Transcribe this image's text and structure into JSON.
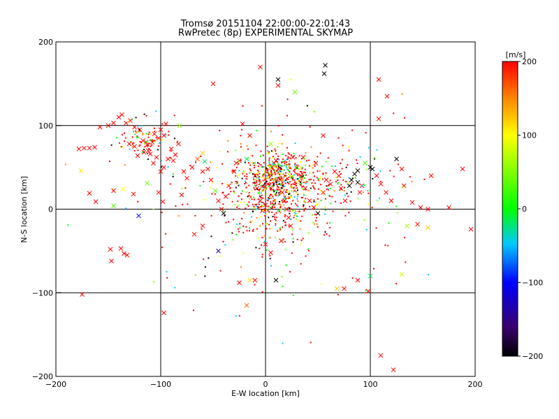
{
  "chart_data": {
    "type": "scatter",
    "title": "Tromsø 20151104 22:00:00-22:01:43",
    "subtitle": "RwPretec (8p) EXPERIMENTAL SKYMAP",
    "xlabel": "E-W location [km]",
    "ylabel": "N-S location [km]",
    "xlim": [
      -200,
      200
    ],
    "ylim": [
      -200,
      200
    ],
    "x_ticks": [
      -200,
      -100,
      0,
      100,
      200
    ],
    "y_ticks": [
      -200,
      -100,
      0,
      100,
      200
    ],
    "grid": true,
    "colorbar": {
      "label": "[m/s]",
      "range": [
        -200,
        200
      ],
      "ticks": [
        -200,
        -100,
        0,
        100,
        200
      ],
      "colors": [
        "#000000",
        "#3a0070",
        "#0000ff",
        "#00c8ff",
        "#00ff00",
        "#ffff00",
        "#ff8000",
        "#ff0000"
      ]
    },
    "series_large_crosses": [
      {
        "x": -178,
        "y": 72,
        "v": 200
      },
      {
        "x": -173,
        "y": 73,
        "v": 200
      },
      {
        "x": -168,
        "y": 73,
        "v": 200
      },
      {
        "x": -163,
        "y": 74,
        "v": 200
      },
      {
        "x": -158,
        "y": 98,
        "v": 200
      },
      {
        "x": -150,
        "y": 100,
        "v": 200
      },
      {
        "x": -145,
        "y": 103,
        "v": 200
      },
      {
        "x": -140,
        "y": 110,
        "v": 200
      },
      {
        "x": -137,
        "y": 113,
        "v": 200
      },
      {
        "x": -133,
        "y": 103,
        "v": 200
      },
      {
        "x": -129,
        "y": 106,
        "v": 200
      },
      {
        "x": -125,
        "y": 98,
        "v": 200
      },
      {
        "x": -120,
        "y": 95,
        "v": 200
      },
      {
        "x": -117,
        "y": 82,
        "v": 200
      },
      {
        "x": -114,
        "y": 80,
        "v": 200
      },
      {
        "x": -112,
        "y": 70,
        "v": 200
      },
      {
        "x": -110,
        "y": 66,
        "v": 200
      },
      {
        "x": -106,
        "y": 90,
        "v": 200
      },
      {
        "x": -102,
        "y": 85,
        "v": 200
      },
      {
        "x": -100,
        "y": 95,
        "v": 200
      },
      {
        "x": -97,
        "y": 88,
        "v": 200
      },
      {
        "x": -95,
        "y": 102,
        "v": 200
      },
      {
        "x": -93,
        "y": 60,
        "v": 200
      },
      {
        "x": -90,
        "y": 72,
        "v": 200
      },
      {
        "x": -86,
        "y": 65,
        "v": 200
      },
      {
        "x": -83,
        "y": 78,
        "v": 200
      },
      {
        "x": -130,
        "y": 78,
        "v": 200
      },
      {
        "x": -125,
        "y": 75,
        "v": 200
      },
      {
        "x": -122,
        "y": 64,
        "v": 200
      },
      {
        "x": -116,
        "y": 68,
        "v": 200
      },
      {
        "x": -113,
        "y": 77,
        "v": 200
      },
      {
        "x": -108,
        "y": 80,
        "v": 200
      },
      {
        "x": -104,
        "y": 62,
        "v": 200
      },
      {
        "x": -100,
        "y": 45,
        "v": 200
      },
      {
        "x": -97,
        "y": 50,
        "v": 200
      },
      {
        "x": -107,
        "y": 55,
        "v": 200
      },
      {
        "x": -176,
        "y": 46,
        "v": 110
      },
      {
        "x": -168,
        "y": 19,
        "v": 200
      },
      {
        "x": -162,
        "y": 9,
        "v": 200
      },
      {
        "x": -145,
        "y": 22,
        "v": 200
      },
      {
        "x": -136,
        "y": 24,
        "v": 100
      },
      {
        "x": -126,
        "y": 18,
        "v": 200
      },
      {
        "x": -145,
        "y": 4,
        "v": 30
      },
      {
        "x": -121,
        "y": -8,
        "v": -100
      },
      {
        "x": -148,
        "y": -48,
        "v": 200
      },
      {
        "x": -147,
        "y": -62,
        "v": 200
      },
      {
        "x": -138,
        "y": -47,
        "v": 200
      },
      {
        "x": -135,
        "y": -53,
        "v": 200
      },
      {
        "x": -132,
        "y": -55,
        "v": 200
      },
      {
        "x": -175,
        "y": -102,
        "v": 200
      },
      {
        "x": -97,
        "y": -124,
        "v": 200
      },
      {
        "x": -113,
        "y": 31,
        "v": 40
      },
      {
        "x": -102,
        "y": 20,
        "v": 200
      },
      {
        "x": -98,
        "y": 9,
        "v": 200
      },
      {
        "x": -80,
        "y": 17,
        "v": 200
      },
      {
        "x": -75,
        "y": 37,
        "v": 200
      },
      {
        "x": -70,
        "y": 50,
        "v": 200
      },
      {
        "x": -65,
        "y": 60,
        "v": 160
      },
      {
        "x": -60,
        "y": 67,
        "v": 120
      },
      {
        "x": -58,
        "y": 57,
        "v": -20
      },
      {
        "x": -55,
        "y": 48,
        "v": 200
      },
      {
        "x": -52,
        "y": 35,
        "v": 200
      },
      {
        "x": -48,
        "y": 22,
        "v": 40
      },
      {
        "x": -45,
        "y": 10,
        "v": 200
      },
      {
        "x": -42,
        "y": 0,
        "v": 200
      },
      {
        "x": -40,
        "y": -5,
        "v": -200
      },
      {
        "x": -38,
        "y": 15,
        "v": 200
      },
      {
        "x": -35,
        "y": 28,
        "v": 200
      },
      {
        "x": -30,
        "y": 45,
        "v": 200
      },
      {
        "x": -25,
        "y": 58,
        "v": 200
      },
      {
        "x": -22,
        "y": 102,
        "v": 200
      },
      {
        "x": -15,
        "y": 88,
        "v": 200
      },
      {
        "x": -10,
        "y": 40,
        "v": 200
      },
      {
        "x": -8,
        "y": 25,
        "v": 200
      },
      {
        "x": -5,
        "y": 10,
        "v": 200
      },
      {
        "x": -3,
        "y": -2,
        "v": 200
      },
      {
        "x": 0,
        "y": 5,
        "v": 200
      },
      {
        "x": 2,
        "y": 30,
        "v": 200
      },
      {
        "x": 4,
        "y": 42,
        "v": 200
      },
      {
        "x": 6,
        "y": 50,
        "v": 200
      },
      {
        "x": 8,
        "y": 55,
        "v": 200
      },
      {
        "x": 10,
        "y": 58,
        "v": 200
      },
      {
        "x": 12,
        "y": 48,
        "v": 200
      },
      {
        "x": 14,
        "y": 35,
        "v": 200
      },
      {
        "x": 16,
        "y": 20,
        "v": 200
      },
      {
        "x": 18,
        "y": 10,
        "v": 200
      },
      {
        "x": 20,
        "y": 0,
        "v": 200
      },
      {
        "x": 22,
        "y": -10,
        "v": 200
      },
      {
        "x": 24,
        "y": -20,
        "v": 200
      },
      {
        "x": 26,
        "y": 62,
        "v": 200
      },
      {
        "x": 30,
        "y": 50,
        "v": 200
      },
      {
        "x": 34,
        "y": 40,
        "v": 200
      },
      {
        "x": 38,
        "y": 25,
        "v": 200
      },
      {
        "x": 42,
        "y": 10,
        "v": 200
      },
      {
        "x": 46,
        "y": 2,
        "v": 200
      },
      {
        "x": 50,
        "y": -5,
        "v": -200
      },
      {
        "x": 55,
        "y": 20,
        "v": 200
      },
      {
        "x": 58,
        "y": 35,
        "v": 200
      },
      {
        "x": 62,
        "y": 30,
        "v": 200
      },
      {
        "x": 66,
        "y": 45,
        "v": 200
      },
      {
        "x": 70,
        "y": 40,
        "v": 200
      },
      {
        "x": 72,
        "y": 25,
        "v": 200
      },
      {
        "x": 76,
        "y": 10,
        "v": 200
      },
      {
        "x": 80,
        "y": 28,
        "v": -200
      },
      {
        "x": 82,
        "y": 35,
        "v": -200
      },
      {
        "x": 85,
        "y": 42,
        "v": -200
      },
      {
        "x": 88,
        "y": 46,
        "v": -200
      },
      {
        "x": 90,
        "y": 20,
        "v": 200
      },
      {
        "x": 95,
        "y": 55,
        "v": 30
      },
      {
        "x": 100,
        "y": 50,
        "v": -200
      },
      {
        "x": 102,
        "y": 48,
        "v": -200
      },
      {
        "x": 106,
        "y": 40,
        "v": 200
      },
      {
        "x": 110,
        "y": 30,
        "v": 200
      },
      {
        "x": 115,
        "y": 20,
        "v": 200
      },
      {
        "x": 120,
        "y": 10,
        "v": 200
      },
      {
        "x": 125,
        "y": 60,
        "v": -200
      },
      {
        "x": 130,
        "y": 48,
        "v": 200
      },
      {
        "x": 132,
        "y": 28,
        "v": 200
      },
      {
        "x": 140,
        "y": 8,
        "v": 200
      },
      {
        "x": 148,
        "y": 2,
        "v": 200
      },
      {
        "x": 155,
        "y": 0,
        "v": 200
      },
      {
        "x": 158,
        "y": 40,
        "v": 200
      },
      {
        "x": 175,
        "y": 2,
        "v": 200
      },
      {
        "x": 188,
        "y": 48,
        "v": 200
      },
      {
        "x": 196,
        "y": -24,
        "v": 200
      },
      {
        "x": 135,
        "y": -20,
        "v": 60
      },
      {
        "x": 145,
        "y": -18,
        "v": 200
      },
      {
        "x": 155,
        "y": -22,
        "v": 120
      },
      {
        "x": 100,
        "y": -80,
        "v": -20
      },
      {
        "x": 130,
        "y": -78,
        "v": 80
      },
      {
        "x": 98,
        "y": -98,
        "v": 200
      },
      {
        "x": 110,
        "y": -175,
        "v": 200
      },
      {
        "x": 122,
        "y": -192,
        "v": 200
      },
      {
        "x": 75,
        "y": -95,
        "v": 200
      },
      {
        "x": 88,
        "y": -85,
        "v": 200
      },
      {
        "x": 68,
        "y": -95,
        "v": 120
      },
      {
        "x": 10,
        "y": -85,
        "v": -200
      },
      {
        "x": -10,
        "y": -85,
        "v": 200
      },
      {
        "x": -15,
        "y": -85,
        "v": 110
      },
      {
        "x": -25,
        "y": -88,
        "v": 200
      },
      {
        "x": -18,
        "y": -115,
        "v": 160
      },
      {
        "x": 0,
        "y": -42,
        "v": 200
      },
      {
        "x": 5,
        "y": -52,
        "v": 200
      },
      {
        "x": 15,
        "y": -38,
        "v": 200
      },
      {
        "x": -60,
        "y": -20,
        "v": 200
      },
      {
        "x": -68,
        "y": -30,
        "v": 200
      },
      {
        "x": -45,
        "y": -50,
        "v": -140
      },
      {
        "x": -5,
        "y": 170,
        "v": 200
      },
      {
        "x": -50,
        "y": 150,
        "v": 200
      },
      {
        "x": 12,
        "y": 155,
        "v": -200
      },
      {
        "x": 12,
        "y": 148,
        "v": 200
      },
      {
        "x": 28,
        "y": 140,
        "v": 40
      },
      {
        "x": 56,
        "y": 162,
        "v": -200
      },
      {
        "x": 57,
        "y": 172,
        "v": -200
      },
      {
        "x": 108,
        "y": 155,
        "v": 200
      },
      {
        "x": 116,
        "y": 135,
        "v": 200
      },
      {
        "x": 55,
        "y": 88,
        "v": 200
      },
      {
        "x": 108,
        "y": 108,
        "v": 200
      },
      {
        "x": 88,
        "y": 32,
        "v": -200
      },
      {
        "x": 92,
        "y": 28,
        "v": 200
      },
      {
        "x": 48,
        "y": 55,
        "v": 200
      },
      {
        "x": 36,
        "y": 62,
        "v": 200
      },
      {
        "x": -18,
        "y": 60,
        "v": -20
      },
      {
        "x": -28,
        "y": 55,
        "v": 200
      },
      {
        "x": 5,
        "y": 78,
        "v": 60
      },
      {
        "x": -60,
        "y": 45,
        "v": 200
      },
      {
        "x": -78,
        "y": 45,
        "v": 200
      },
      {
        "x": -82,
        "y": 100,
        "v": 60
      },
      {
        "x": -88,
        "y": 58,
        "v": 200
      }
    ]
  }
}
